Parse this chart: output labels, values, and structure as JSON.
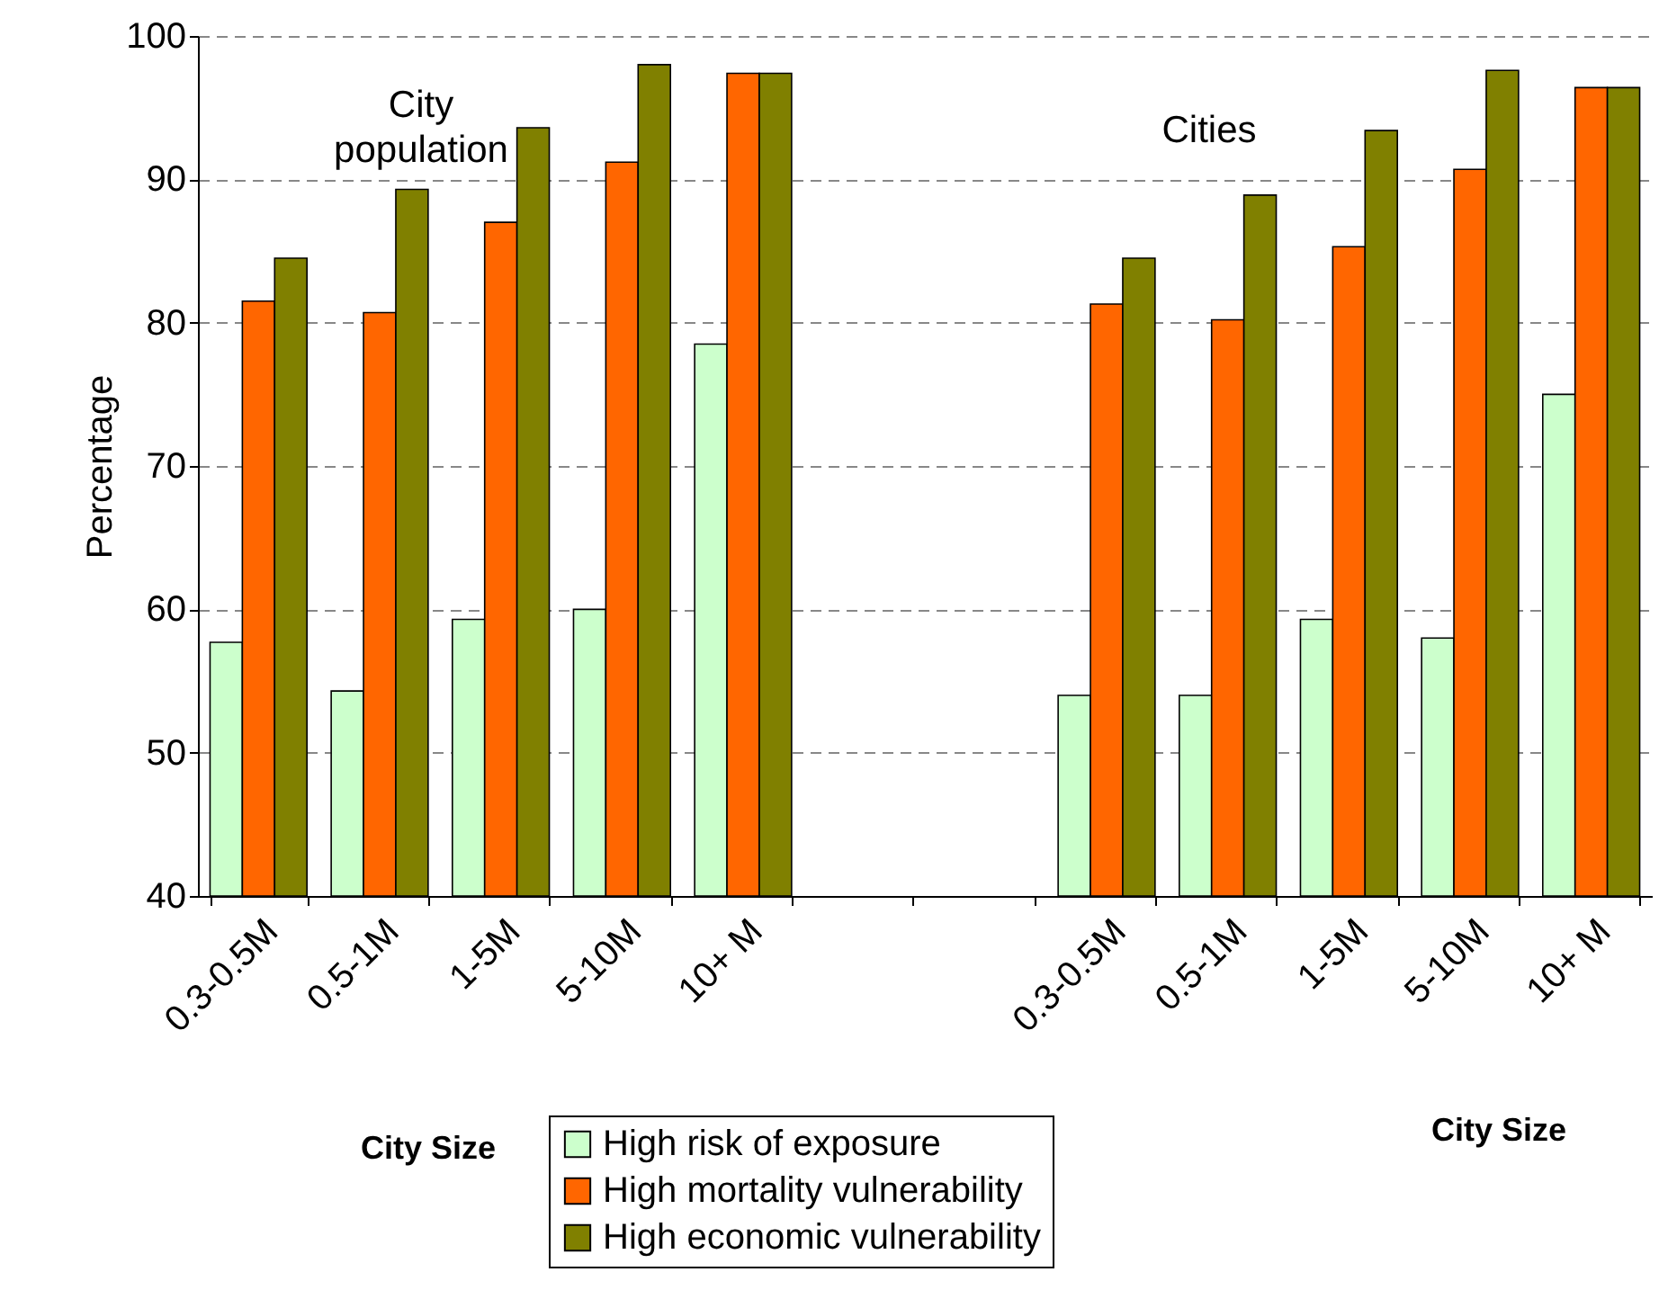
{
  "chart_data": {
    "type": "bar",
    "ylabel": "Percentage",
    "xlabel": "City Size",
    "annotations": [
      "City population",
      "Cities",
      "City Size"
    ],
    "categories": [
      "0.3-0.5M",
      "0.5-1M",
      "1-5M",
      "5-10M",
      "10+ M",
      null,
      null,
      "0.3-0.5M",
      "0.5-1M",
      "1-5M",
      "5-10M",
      "10+ M"
    ],
    "series": [
      {
        "name": "High risk of exposure",
        "color": "#ccffcc",
        "values": [
          57.7,
          54.3,
          59.3,
          60,
          78.5,
          null,
          null,
          54,
          54,
          59.3,
          58,
          75
        ]
      },
      {
        "name": "High mortality vulnerability",
        "color": "#ff6600",
        "values": [
          81.5,
          80.7,
          87,
          91.2,
          97.4,
          null,
          null,
          81.3,
          80.2,
          85.3,
          90.7,
          96.4
        ]
      },
      {
        "name": "High economic vulnerability",
        "color": "#808000",
        "values": [
          84.5,
          89.3,
          93.6,
          98,
          97.4,
          null,
          null,
          84.5,
          88.9,
          93.4,
          97.6,
          96.4
        ]
      }
    ],
    "ylim": [
      40,
      100
    ],
    "yticks": [
      40,
      50,
      60,
      70,
      80,
      90,
      100
    ],
    "grid": "y",
    "legend": "bottom"
  }
}
